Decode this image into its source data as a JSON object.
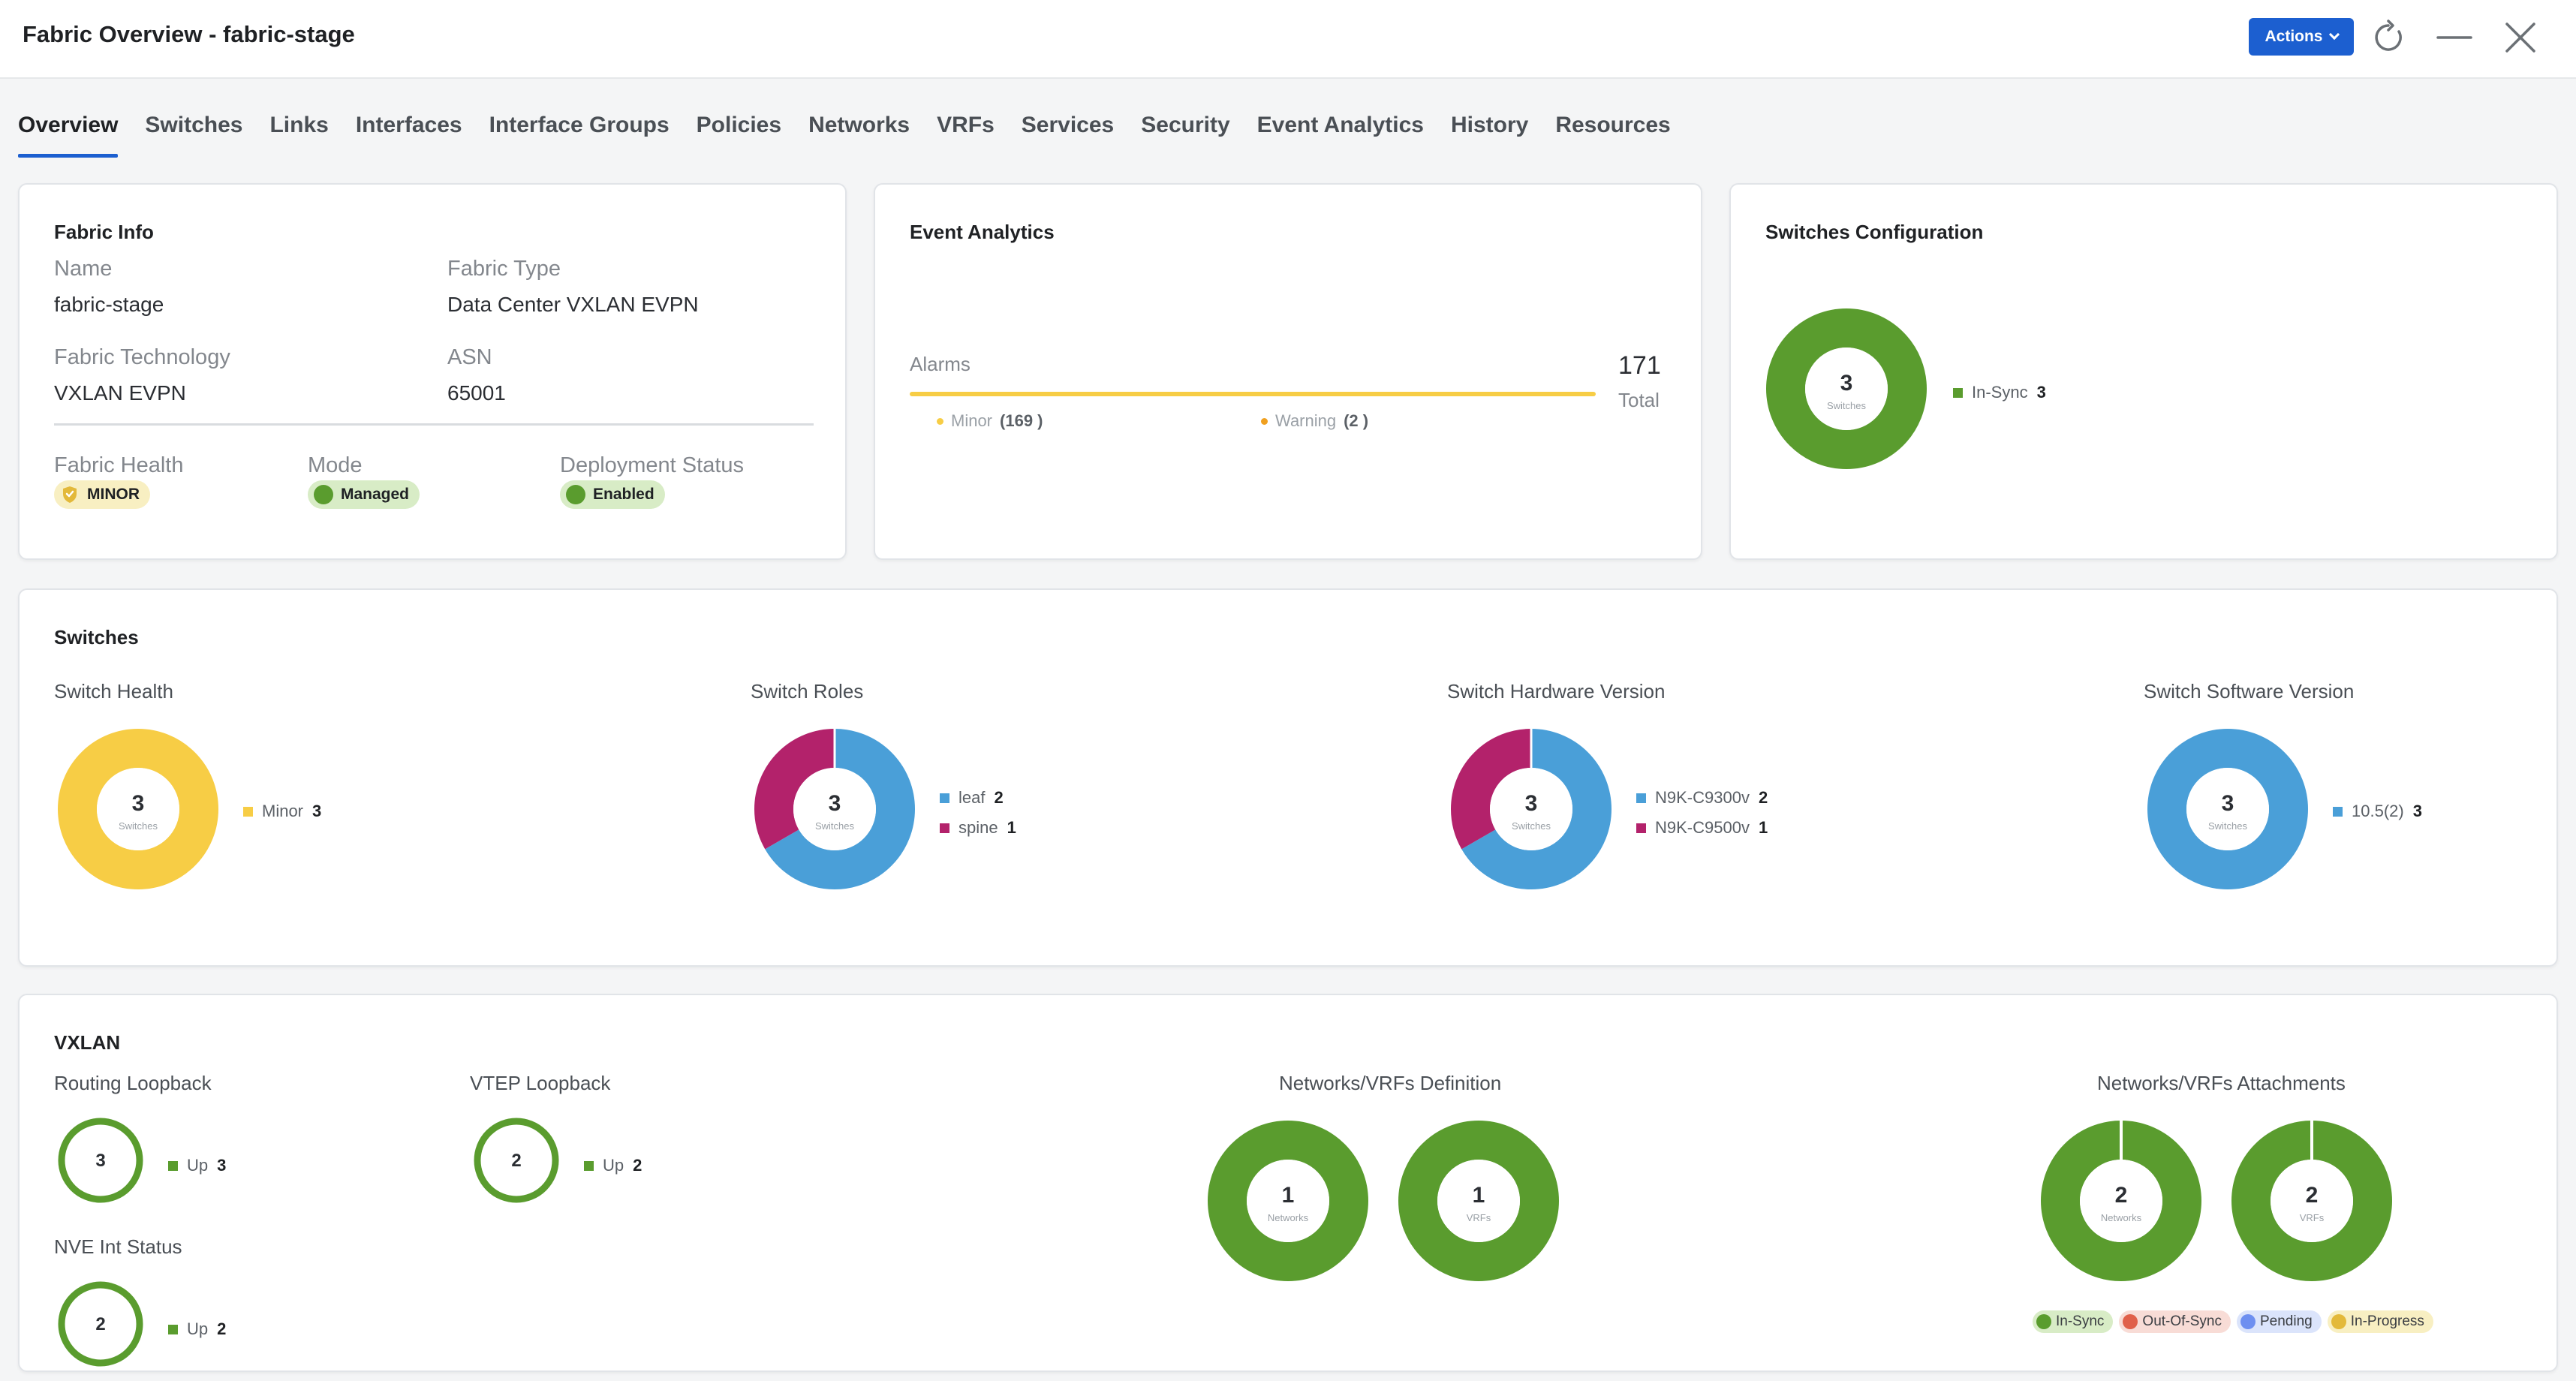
{
  "header": {
    "title": "Fabric Overview - fabric-stage",
    "actions_label": "Actions"
  },
  "tabs": [
    "Overview",
    "Switches",
    "Links",
    "Interfaces",
    "Interface Groups",
    "Policies",
    "Networks",
    "VRFs",
    "Services",
    "Security",
    "Event Analytics",
    "History",
    "Resources"
  ],
  "fabric_info": {
    "title": "Fabric Info",
    "name_label": "Name",
    "name": "fabric-stage",
    "type_label": "Fabric Type",
    "type": "Data Center VXLAN EVPN",
    "tech_label": "Fabric Technology",
    "tech": "VXLAN EVPN",
    "asn_label": "ASN",
    "asn": "65001",
    "health_label": "Fabric Health",
    "health": "MINOR",
    "mode_label": "Mode",
    "mode": "Managed",
    "deploy_label": "Deployment Status",
    "deploy": "Enabled"
  },
  "event_analytics": {
    "title": "Event Analytics",
    "alarms_label": "Alarms",
    "total": "171",
    "total_label": "Total",
    "minor_label": "Minor",
    "minor_count": "(169 )",
    "warning_label": "Warning",
    "warning_count": "(2 )"
  },
  "switches_config": {
    "title": "Switches Configuration",
    "center": "3",
    "center_sub": "Switches",
    "legend": [
      {
        "label": "In-Sync",
        "count": "3",
        "color": "#5a9c2e"
      }
    ]
  },
  "switches": {
    "title": "Switches",
    "health": {
      "label": "Switch Health",
      "center": "3",
      "center_sub": "Switches",
      "legend": [
        {
          "label": "Minor",
          "count": "3",
          "color": "#f7cd45"
        }
      ]
    },
    "roles": {
      "label": "Switch Roles",
      "center": "3",
      "center_sub": "Switches",
      "legend": [
        {
          "label": "leaf",
          "count": "2",
          "color": "#4a9fd8"
        },
        {
          "label": "spine",
          "count": "1",
          "color": "#b3226b"
        }
      ]
    },
    "hardware": {
      "label": "Switch Hardware Version",
      "center": "3",
      "center_sub": "Switches",
      "legend": [
        {
          "label": "N9K-C9300v",
          "count": "2",
          "color": "#4a9fd8"
        },
        {
          "label": "N9K-C9500v",
          "count": "1",
          "color": "#b3226b"
        }
      ]
    },
    "software": {
      "label": "Switch Software Version",
      "center": "3",
      "center_sub": "Switches",
      "legend": [
        {
          "label": "10.5(2)",
          "count": "3",
          "color": "#4a9fd8"
        }
      ]
    }
  },
  "vxlan": {
    "title": "VXLAN",
    "routing_loopback": {
      "label": "Routing Loopback",
      "center": "3",
      "legend_label": "Up",
      "legend_count": "3"
    },
    "vtep_loopback": {
      "label": "VTEP Loopback",
      "center": "2",
      "legend_label": "Up",
      "legend_count": "2"
    },
    "nve": {
      "label": "NVE Int Status",
      "center": "2",
      "legend_label": "Up",
      "legend_count": "2"
    },
    "definition": {
      "label": "Networks/VRFs Definition",
      "networks": {
        "center": "1",
        "sub": "Networks"
      },
      "vrfs": {
        "center": "1",
        "sub": "VRFs"
      }
    },
    "attachments": {
      "label": "Networks/VRFs Attachments",
      "networks": {
        "center": "2",
        "sub": "Networks"
      },
      "vrfs": {
        "center": "2",
        "sub": "VRFs"
      }
    },
    "status_legend": [
      {
        "label": "In-Sync",
        "color": "#5a9c2e",
        "bg": "#d8ecc6"
      },
      {
        "label": "Out-Of-Sync",
        "color": "#e0604a",
        "bg": "#f8dcd6"
      },
      {
        "label": "Pending",
        "color": "#6d8ff0",
        "bg": "#dbe4fb"
      },
      {
        "label": "In-Progress",
        "color": "#e3b93a",
        "bg": "#f8efc2"
      }
    ]
  },
  "colors": {
    "accent": "#1c5fd0",
    "green": "#5a9c2e",
    "yellow": "#f7cd45",
    "blue": "#4a9fd8",
    "magenta": "#b3226b"
  }
}
